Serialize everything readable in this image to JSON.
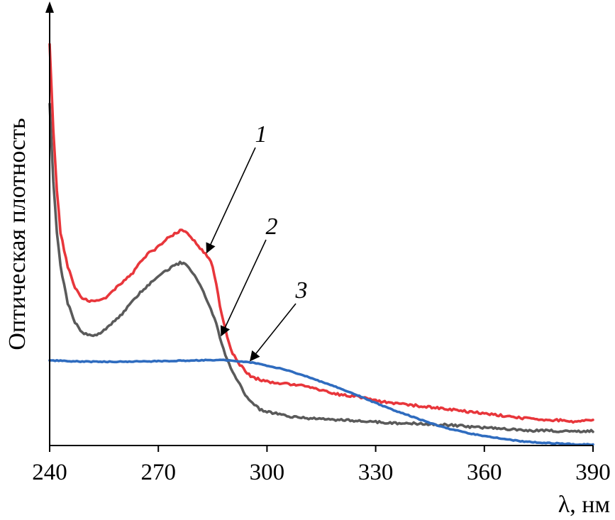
{
  "chart_data": {
    "type": "line",
    "xlabel": "λ, нм",
    "ylabel": "Оптическая плотность",
    "xlim": [
      240,
      390
    ],
    "ylim": [
      0,
      1
    ],
    "x_ticks": [
      240,
      270,
      300,
      330,
      360,
      390
    ],
    "y_ticks_shown": false,
    "grid": false,
    "legend": "none",
    "series": [
      {
        "name": "1",
        "color": "#e8363b",
        "points": [
          [
            240,
            0.945
          ],
          [
            241,
            0.74
          ],
          [
            242,
            0.6
          ],
          [
            243,
            0.5
          ],
          [
            245,
            0.42
          ],
          [
            247,
            0.37
          ],
          [
            249,
            0.345
          ],
          [
            251,
            0.34
          ],
          [
            253,
            0.34
          ],
          [
            255,
            0.345
          ],
          [
            257,
            0.36
          ],
          [
            259,
            0.375
          ],
          [
            261,
            0.39
          ],
          [
            263,
            0.405
          ],
          [
            265,
            0.43
          ],
          [
            267,
            0.45
          ],
          [
            269,
            0.46
          ],
          [
            271,
            0.475
          ],
          [
            273,
            0.49
          ],
          [
            275,
            0.5
          ],
          [
            276,
            0.505
          ],
          [
            277,
            0.505
          ],
          [
            278,
            0.498
          ],
          [
            280,
            0.48
          ],
          [
            282,
            0.46
          ],
          [
            284,
            0.44
          ],
          [
            285,
            0.42
          ],
          [
            286,
            0.38
          ],
          [
            287,
            0.33
          ],
          [
            288,
            0.29
          ],
          [
            289,
            0.255
          ],
          [
            290,
            0.225
          ],
          [
            292,
            0.195
          ],
          [
            294,
            0.175
          ],
          [
            296,
            0.16
          ],
          [
            298,
            0.155
          ],
          [
            300,
            0.15
          ],
          [
            305,
            0.145
          ],
          [
            310,
            0.14
          ],
          [
            315,
            0.13
          ],
          [
            320,
            0.12
          ],
          [
            325,
            0.115
          ],
          [
            330,
            0.105
          ],
          [
            335,
            0.1
          ],
          [
            340,
            0.095
          ],
          [
            345,
            0.09
          ],
          [
            350,
            0.085
          ],
          [
            355,
            0.08
          ],
          [
            360,
            0.075
          ],
          [
            365,
            0.07
          ],
          [
            370,
            0.065
          ],
          [
            375,
            0.06
          ],
          [
            380,
            0.06
          ],
          [
            385,
            0.055
          ],
          [
            390,
            0.06
          ]
        ]
      },
      {
        "name": "2",
        "color": "#5a5a5a",
        "points": [
          [
            240,
            0.8
          ],
          [
            241,
            0.62
          ],
          [
            242,
            0.5
          ],
          [
            243,
            0.42
          ],
          [
            245,
            0.335
          ],
          [
            247,
            0.29
          ],
          [
            249,
            0.265
          ],
          [
            251,
            0.26
          ],
          [
            253,
            0.26
          ],
          [
            255,
            0.27
          ],
          [
            257,
            0.285
          ],
          [
            259,
            0.3
          ],
          [
            261,
            0.32
          ],
          [
            263,
            0.34
          ],
          [
            265,
            0.36
          ],
          [
            267,
            0.375
          ],
          [
            269,
            0.39
          ],
          [
            271,
            0.405
          ],
          [
            273,
            0.415
          ],
          [
            275,
            0.425
          ],
          [
            276,
            0.43
          ],
          [
            277,
            0.428
          ],
          [
            278,
            0.42
          ],
          [
            280,
            0.4
          ],
          [
            282,
            0.37
          ],
          [
            284,
            0.33
          ],
          [
            286,
            0.285
          ],
          [
            287,
            0.255
          ],
          [
            288,
            0.225
          ],
          [
            290,
            0.18
          ],
          [
            292,
            0.15
          ],
          [
            294,
            0.12
          ],
          [
            296,
            0.1
          ],
          [
            298,
            0.085
          ],
          [
            300,
            0.08
          ],
          [
            305,
            0.07
          ],
          [
            310,
            0.065
          ],
          [
            315,
            0.063
          ],
          [
            320,
            0.06
          ],
          [
            325,
            0.058
          ],
          [
            330,
            0.055
          ],
          [
            335,
            0.053
          ],
          [
            340,
            0.052
          ],
          [
            345,
            0.05
          ],
          [
            350,
            0.048
          ],
          [
            355,
            0.045
          ],
          [
            360,
            0.042
          ],
          [
            365,
            0.04
          ],
          [
            370,
            0.036
          ],
          [
            375,
            0.035
          ],
          [
            380,
            0.034
          ],
          [
            385,
            0.033
          ],
          [
            390,
            0.034
          ]
        ]
      },
      {
        "name": "3",
        "color": "#2f6cbf",
        "points": [
          [
            240,
            0.2
          ],
          [
            250,
            0.197
          ],
          [
            260,
            0.197
          ],
          [
            270,
            0.198
          ],
          [
            280,
            0.2
          ],
          [
            285,
            0.201
          ],
          [
            290,
            0.2
          ],
          [
            295,
            0.196
          ],
          [
            300,
            0.188
          ],
          [
            305,
            0.178
          ],
          [
            310,
            0.165
          ],
          [
            315,
            0.15
          ],
          [
            320,
            0.135
          ],
          [
            325,
            0.118
          ],
          [
            330,
            0.1
          ],
          [
            335,
            0.083
          ],
          [
            340,
            0.068
          ],
          [
            345,
            0.053
          ],
          [
            350,
            0.04
          ],
          [
            355,
            0.03
          ],
          [
            360,
            0.022
          ],
          [
            365,
            0.016
          ],
          [
            370,
            0.01
          ],
          [
            375,
            0.007
          ],
          [
            380,
            0.005
          ],
          [
            385,
            0.003
          ],
          [
            390,
            0.002
          ]
        ]
      }
    ],
    "annotations": [
      {
        "label": "1",
        "series": "1",
        "at_x": 283
      },
      {
        "label": "2",
        "series": "2",
        "at_x": 287
      },
      {
        "label": "3",
        "series": "3",
        "at_x": 295
      }
    ]
  }
}
